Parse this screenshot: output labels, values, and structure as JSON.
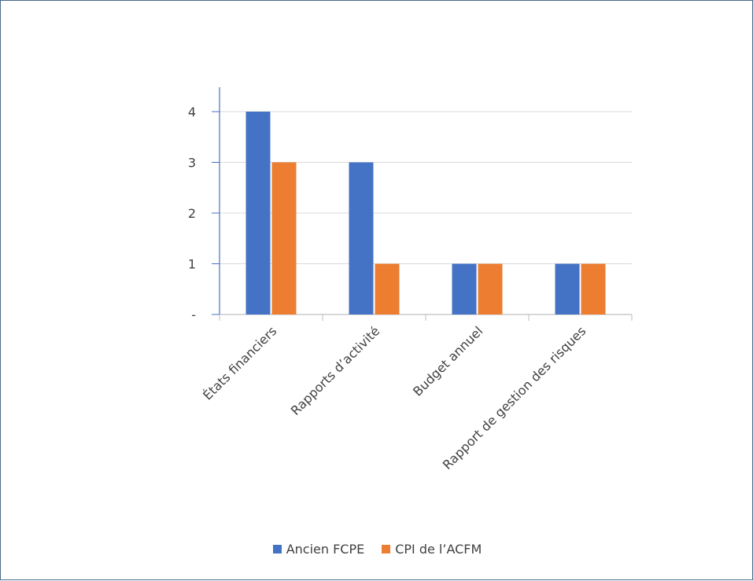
{
  "chart_data": {
    "type": "bar",
    "categories": [
      "États financiers",
      "Rapports d’activité",
      "Budget annuel",
      "Rapport de gestion des risques"
    ],
    "series": [
      {
        "name": "Ancien FCPE",
        "values": [
          4,
          3,
          1,
          1
        ],
        "color": "#4472C4"
      },
      {
        "name": "CPI de l’ACFM",
        "values": [
          3,
          1,
          1,
          1
        ],
        "color": "#ED7D31"
      }
    ],
    "y_tick_labels": [
      "-",
      "1",
      "2",
      "3",
      "4"
    ],
    "ylim": [
      0,
      4.45
    ],
    "grid": true,
    "legend_position": "bottom"
  }
}
